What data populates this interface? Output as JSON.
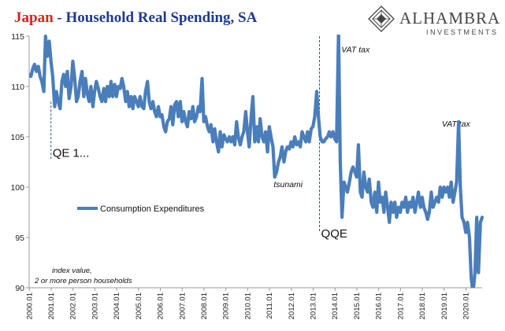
{
  "title": {
    "country": "Japan",
    "separator": " - ",
    "text": "Household Real Spending, SA",
    "country_color": "#e0201b",
    "text_color": "#1f3a8f"
  },
  "logo": {
    "name": "ALHAMBRA",
    "sub": "INVESTMENTS",
    "color": "#444444"
  },
  "note": {
    "line1": "index value,",
    "line2": "2 or more person households"
  },
  "chart_data": {
    "type": "line",
    "series": [
      {
        "name": "Consumption Expenditures",
        "color": "#4a7ebb"
      }
    ],
    "ylim": [
      90,
      115
    ],
    "yticks": [
      90,
      95,
      100,
      105,
      110,
      115
    ],
    "xlim": [
      2000.0,
      2020.75
    ],
    "xticks": [
      "2000.01",
      "2001.01",
      "2002.01",
      "2003.01",
      "2004.01",
      "2005.01",
      "2006.01",
      "2007.01",
      "2008.01",
      "2009.01",
      "2010.01",
      "2011.01",
      "2012.01",
      "2013.01",
      "2014.01",
      "2015.01",
      "2016.01",
      "2017.01",
      "2018.01",
      "2019.01",
      "2020.01"
    ],
    "points": [
      [
        2000.0,
        111.2
      ],
      [
        2000.08,
        111.0
      ],
      [
        2000.17,
        111.8
      ],
      [
        2000.25,
        112.2
      ],
      [
        2000.33,
        111.5
      ],
      [
        2000.42,
        112.0
      ],
      [
        2000.5,
        111.0
      ],
      [
        2000.58,
        110.5
      ],
      [
        2000.67,
        109.5
      ],
      [
        2000.75,
        115.0
      ],
      [
        2000.83,
        113.0
      ],
      [
        2000.92,
        114.5
      ],
      [
        2001.0,
        112.5
      ],
      [
        2001.08,
        111.0
      ],
      [
        2001.17,
        108.0
      ],
      [
        2001.25,
        109.5
      ],
      [
        2001.33,
        108.5
      ],
      [
        2001.42,
        107.8
      ],
      [
        2001.5,
        110.5
      ],
      [
        2001.58,
        111.2
      ],
      [
        2001.67,
        110.0
      ],
      [
        2001.75,
        111.5
      ],
      [
        2001.83,
        108.8
      ],
      [
        2001.92,
        110.0
      ],
      [
        2002.0,
        112.5
      ],
      [
        2002.08,
        111.0
      ],
      [
        2002.17,
        108.5
      ],
      [
        2002.25,
        109.0
      ],
      [
        2002.33,
        110.5
      ],
      [
        2002.42,
        111.5
      ],
      [
        2002.5,
        109.0
      ],
      [
        2002.58,
        110.8
      ],
      [
        2002.67,
        109.2
      ],
      [
        2002.75,
        108.5
      ],
      [
        2002.83,
        110.0
      ],
      [
        2002.92,
        108.0
      ],
      [
        2003.0,
        109.5
      ],
      [
        2003.08,
        110.5
      ],
      [
        2003.17,
        109.8
      ],
      [
        2003.25,
        109.0
      ],
      [
        2003.33,
        108.5
      ],
      [
        2003.42,
        109.8
      ],
      [
        2003.5,
        108.5
      ],
      [
        2003.58,
        110.0
      ],
      [
        2003.67,
        109.0
      ],
      [
        2003.75,
        110.5
      ],
      [
        2003.83,
        109.0
      ],
      [
        2003.92,
        110.2
      ],
      [
        2004.0,
        109.0
      ],
      [
        2004.08,
        110.0
      ],
      [
        2004.17,
        109.8
      ],
      [
        2004.25,
        110.8
      ],
      [
        2004.33,
        110.0
      ],
      [
        2004.42,
        108.5
      ],
      [
        2004.5,
        109.5
      ],
      [
        2004.58,
        108.0
      ],
      [
        2004.67,
        109.0
      ],
      [
        2004.75,
        107.8
      ],
      [
        2004.83,
        109.0
      ],
      [
        2004.92,
        108.5
      ],
      [
        2005.0,
        108.0
      ],
      [
        2005.08,
        109.0
      ],
      [
        2005.17,
        108.0
      ],
      [
        2005.25,
        107.8
      ],
      [
        2005.33,
        109.5
      ],
      [
        2005.42,
        110.5
      ],
      [
        2005.5,
        108.5
      ],
      [
        2005.58,
        107.8
      ],
      [
        2005.67,
        108.5
      ],
      [
        2005.75,
        107.5
      ],
      [
        2005.83,
        107.0
      ],
      [
        2005.92,
        108.0
      ],
      [
        2006.0,
        107.0
      ],
      [
        2006.08,
        107.2
      ],
      [
        2006.17,
        106.0
      ],
      [
        2006.25,
        105.5
      ],
      [
        2006.33,
        106.5
      ],
      [
        2006.42,
        106.8
      ],
      [
        2006.5,
        108.0
      ],
      [
        2006.58,
        106.2
      ],
      [
        2006.67,
        108.2
      ],
      [
        2006.75,
        108.5
      ],
      [
        2006.83,
        107.0
      ],
      [
        2006.92,
        108.5
      ],
      [
        2007.0,
        106.5
      ],
      [
        2007.08,
        107.5
      ],
      [
        2007.17,
        106.5
      ],
      [
        2007.25,
        106.0
      ],
      [
        2007.33,
        107.5
      ],
      [
        2007.42,
        106.8
      ],
      [
        2007.5,
        108.0
      ],
      [
        2007.58,
        106.5
      ],
      [
        2007.67,
        107.0
      ],
      [
        2007.75,
        108.0
      ],
      [
        2007.83,
        107.5
      ],
      [
        2007.92,
        110.8
      ],
      [
        2008.0,
        106.5
      ],
      [
        2008.08,
        107.0
      ],
      [
        2008.17,
        106.0
      ],
      [
        2008.25,
        105.5
      ],
      [
        2008.33,
        106.2
      ],
      [
        2008.42,
        104.5
      ],
      [
        2008.5,
        105.8
      ],
      [
        2008.58,
        104.5
      ],
      [
        2008.67,
        103.5
      ],
      [
        2008.75,
        105.5
      ],
      [
        2008.83,
        104.0
      ],
      [
        2008.92,
        105.2
      ],
      [
        2009.0,
        104.8
      ],
      [
        2009.08,
        104.5
      ],
      [
        2009.17,
        105.0
      ],
      [
        2009.25,
        104.5
      ],
      [
        2009.33,
        105.0
      ],
      [
        2009.42,
        104.2
      ],
      [
        2009.5,
        106.5
      ],
      [
        2009.58,
        105.0
      ],
      [
        2009.67,
        104.2
      ],
      [
        2009.75,
        105.0
      ],
      [
        2009.83,
        105.5
      ],
      [
        2009.92,
        107.5
      ],
      [
        2010.0,
        105.5
      ],
      [
        2010.08,
        104.0
      ],
      [
        2010.17,
        107.0
      ],
      [
        2010.25,
        109.0
      ],
      [
        2010.33,
        104.5
      ],
      [
        2010.42,
        106.0
      ],
      [
        2010.5,
        104.5
      ],
      [
        2010.58,
        106.8
      ],
      [
        2010.67,
        105.0
      ],
      [
        2010.75,
        104.5
      ],
      [
        2010.83,
        105.5
      ],
      [
        2010.92,
        103.5
      ],
      [
        2011.0,
        106.0
      ],
      [
        2011.08,
        105.0
      ],
      [
        2011.17,
        104.0
      ],
      [
        2011.25,
        101.0
      ],
      [
        2011.33,
        101.5
      ],
      [
        2011.42,
        102.5
      ],
      [
        2011.5,
        103.0
      ],
      [
        2011.58,
        104.0
      ],
      [
        2011.67,
        102.5
      ],
      [
        2011.75,
        103.5
      ],
      [
        2011.83,
        104.0
      ],
      [
        2011.92,
        103.8
      ],
      [
        2012.0,
        104.5
      ],
      [
        2012.08,
        104.0
      ],
      [
        2012.17,
        105.0
      ],
      [
        2012.25,
        104.2
      ],
      [
        2012.33,
        104.5
      ],
      [
        2012.42,
        104.0
      ],
      [
        2012.5,
        105.5
      ],
      [
        2012.58,
        105.0
      ],
      [
        2012.67,
        104.5
      ],
      [
        2012.75,
        105.5
      ],
      [
        2012.83,
        104.5
      ],
      [
        2012.92,
        105.8
      ],
      [
        2013.0,
        106.0
      ],
      [
        2013.08,
        107.0
      ],
      [
        2013.17,
        109.5
      ],
      [
        2013.25,
        107.0
      ],
      [
        2013.33,
        105.0
      ],
      [
        2013.42,
        104.5
      ],
      [
        2013.5,
        104.5
      ],
      [
        2013.58,
        104.8
      ],
      [
        2013.67,
        105.0
      ],
      [
        2013.75,
        105.5
      ],
      [
        2013.83,
        105.0
      ],
      [
        2013.92,
        105.5
      ],
      [
        2014.0,
        104.8
      ],
      [
        2014.08,
        104.5
      ],
      [
        2014.17,
        115.5
      ],
      [
        2014.25,
        102.5
      ],
      [
        2014.33,
        97.0
      ],
      [
        2014.42,
        100.5
      ],
      [
        2014.5,
        100.0
      ],
      [
        2014.58,
        99.5
      ],
      [
        2014.67,
        100.5
      ],
      [
        2014.75,
        101.5
      ],
      [
        2014.83,
        102.0
      ],
      [
        2014.92,
        101.5
      ],
      [
        2015.0,
        101.0
      ],
      [
        2015.08,
        104.2
      ],
      [
        2015.17,
        99.5
      ],
      [
        2015.25,
        99.0
      ],
      [
        2015.33,
        101.5
      ],
      [
        2015.42,
        100.0
      ],
      [
        2015.5,
        99.5
      ],
      [
        2015.58,
        100.8
      ],
      [
        2015.67,
        98.5
      ],
      [
        2015.75,
        98.0
      ],
      [
        2015.83,
        99.5
      ],
      [
        2015.92,
        97.5
      ],
      [
        2016.0,
        100.5
      ],
      [
        2016.08,
        98.5
      ],
      [
        2016.17,
        99.0
      ],
      [
        2016.25,
        97.5
      ],
      [
        2016.33,
        99.5
      ],
      [
        2016.42,
        98.0
      ],
      [
        2016.5,
        96.5
      ],
      [
        2016.58,
        98.5
      ],
      [
        2016.67,
        97.5
      ],
      [
        2016.75,
        98.5
      ],
      [
        2016.83,
        97.0
      ],
      [
        2016.92,
        98.0
      ],
      [
        2017.0,
        97.5
      ],
      [
        2017.08,
        98.5
      ],
      [
        2017.17,
        98.0
      ],
      [
        2017.25,
        99.0
      ],
      [
        2017.33,
        97.5
      ],
      [
        2017.42,
        98.5
      ],
      [
        2017.5,
        98.0
      ],
      [
        2017.58,
        99.0
      ],
      [
        2017.67,
        97.5
      ],
      [
        2017.75,
        98.5
      ],
      [
        2017.83,
        99.5
      ],
      [
        2017.92,
        98.0
      ],
      [
        2018.0,
        99.0
      ],
      [
        2018.08,
        98.0
      ],
      [
        2018.17,
        97.5
      ],
      [
        2018.25,
        96.8
      ],
      [
        2018.33,
        97.5
      ],
      [
        2018.42,
        99.5
      ],
      [
        2018.5,
        98.0
      ],
      [
        2018.58,
        98.5
      ],
      [
        2018.67,
        99.0
      ],
      [
        2018.75,
        98.5
      ],
      [
        2018.83,
        100.0
      ],
      [
        2018.92,
        99.0
      ],
      [
        2019.0,
        100.0
      ],
      [
        2019.08,
        99.5
      ],
      [
        2019.17,
        100.0
      ],
      [
        2019.25,
        99.0
      ],
      [
        2019.33,
        100.5
      ],
      [
        2019.42,
        98.5
      ],
      [
        2019.5,
        99.5
      ],
      [
        2019.58,
        100.5
      ],
      [
        2019.67,
        106.5
      ],
      [
        2019.75,
        100.0
      ],
      [
        2019.83,
        97.0
      ],
      [
        2019.92,
        96.5
      ],
      [
        2020.0,
        95.5
      ],
      [
        2020.08,
        96.5
      ],
      [
        2020.17,
        95.0
      ],
      [
        2020.25,
        91.0
      ],
      [
        2020.33,
        89.5
      ],
      [
        2020.42,
        91.5
      ],
      [
        2020.5,
        97.0
      ],
      [
        2020.58,
        91.5
      ],
      [
        2020.67,
        96.5
      ],
      [
        2020.75,
        97.0
      ]
    ],
    "annotations": [
      {
        "text": "QE 1...",
        "x": 2001.0,
        "y": 103,
        "style": "big",
        "line_from": 108.5,
        "line_to": 102.8
      },
      {
        "text": "tsunami",
        "x": 2011.2,
        "y": 100.0,
        "style": "italic"
      },
      {
        "text": "QQE",
        "x": 2013.3,
        "y": 95.0,
        "style": "big",
        "line_from": 115,
        "line_to": 95.5
      },
      {
        "text": "VAT tax",
        "x": 2014.3,
        "y": 113.4,
        "style": "italic"
      },
      {
        "text": "VAT tax",
        "x": 2018.9,
        "y": 106.0,
        "style": "italic"
      }
    ]
  }
}
